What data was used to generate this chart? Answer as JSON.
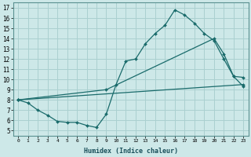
{
  "xlabel": "Humidex (Indice chaleur)",
  "bg_color": "#cde8e8",
  "grid_color": "#aad0d0",
  "line_color": "#1a6b6b",
  "xlim": [
    -0.5,
    23.5
  ],
  "ylim": [
    4.5,
    17.5
  ],
  "yticks": [
    5,
    6,
    7,
    8,
    9,
    10,
    11,
    12,
    13,
    14,
    15,
    16,
    17
  ],
  "xticks": [
    0,
    1,
    2,
    3,
    4,
    5,
    6,
    7,
    8,
    9,
    10,
    11,
    12,
    13,
    14,
    15,
    16,
    17,
    18,
    19,
    20,
    21,
    22,
    23
  ],
  "line1_x": [
    0,
    1,
    2,
    3,
    4,
    5,
    6,
    7,
    8,
    9,
    10,
    11,
    12,
    13,
    14,
    15,
    16,
    17,
    18,
    19,
    20,
    21,
    22,
    23
  ],
  "line1_y": [
    8.0,
    7.7,
    7.0,
    6.5,
    5.9,
    5.8,
    5.8,
    5.5,
    5.3,
    6.6,
    9.5,
    11.8,
    12.0,
    13.5,
    14.5,
    15.3,
    16.8,
    16.3,
    15.5,
    14.5,
    13.8,
    12.0,
    10.3,
    9.3
  ],
  "line2_x": [
    0,
    23
  ],
  "line2_y": [
    8.0,
    9.5
  ],
  "line3_x": [
    0,
    9,
    20,
    21,
    22,
    23
  ],
  "line3_y": [
    8.0,
    9.0,
    14.0,
    12.5,
    10.3,
    10.2
  ]
}
